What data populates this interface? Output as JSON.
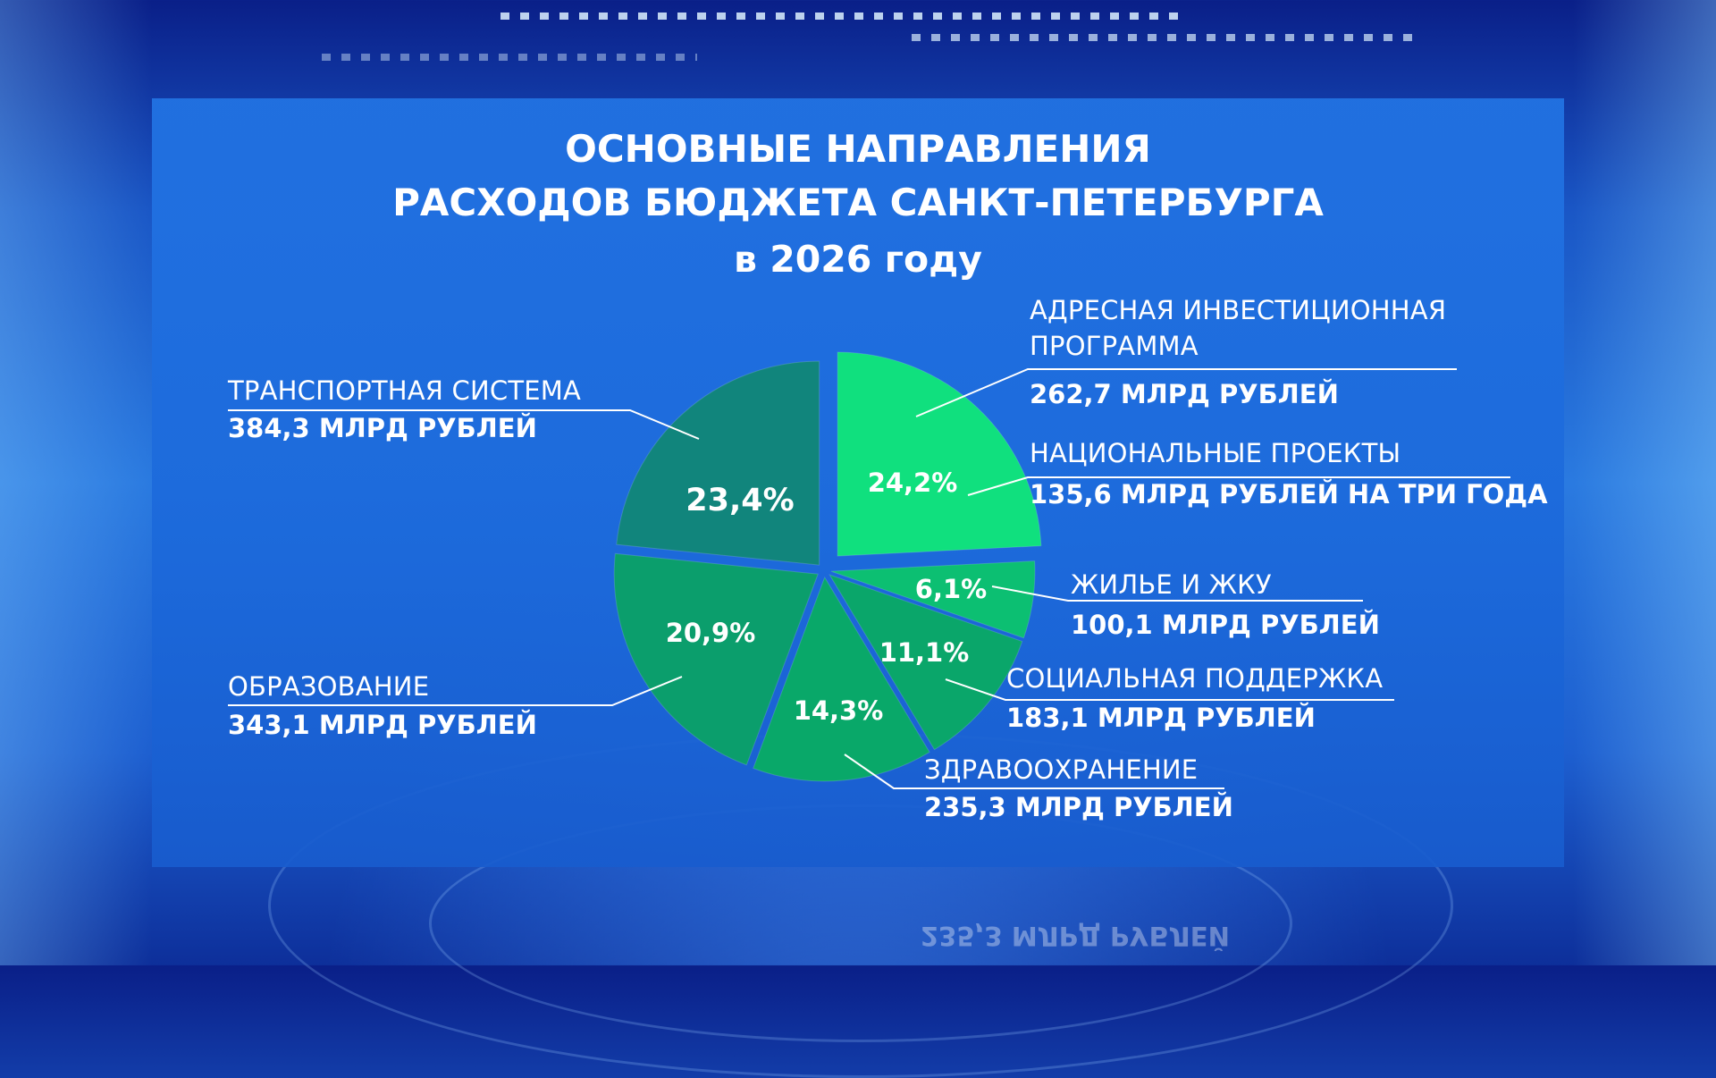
{
  "title": {
    "line1": "ОСНОВНЫЕ НАПРАВЛЕНИЯ",
    "line2": "РАСХОДОВ БЮДЖЕТА САНКТ-ПЕТЕРБУРГА",
    "line3": "в 2026 году"
  },
  "labels": {
    "investment_name_1": "АДРЕСНАЯ ИНВЕСТИЦИОННАЯ",
    "investment_name_2": "ПРОГРАММА",
    "investment_value": "262,7 МЛРД РУБЛЕЙ",
    "national_name": "НАЦИОНАЛЬНЫЕ ПРОЕКТЫ",
    "national_value": "135,6 МЛРД РУБЛЕЙ НА ТРИ ГОДА",
    "housing_name": "ЖИЛЬЕ И ЖКУ",
    "housing_value": "100,1 МЛРД РУБЛЕЙ",
    "social_name": "СОЦИАЛЬНАЯ ПОДДЕРЖКА",
    "social_value": "183,1 МЛРД РУБЛЕЙ",
    "health_name": "ЗДРАВООХРАНЕНИЕ",
    "health_value": "235,3 МЛРД РУБЛЕЙ",
    "education_name": "ОБРАЗОВАНИЕ",
    "education_value": "343,1 МЛРД РУБЛЕЙ",
    "transport_name": "ТРАНСПОРТНАЯ СИСТЕМА",
    "transport_value": "384,3 МЛРД РУБЛЕЙ"
  },
  "reflection_text": "235,3 МЛРД РУБЛЕЙ",
  "chart_data": {
    "type": "pie",
    "title": "ОСНОВНЫЕ НАПРАВЛЕНИЯ РАСХОДОВ БЮДЖЕТА САНКТ-ПЕТЕРБУРГА в 2026 году",
    "slices": [
      {
        "label": "АДРЕСНАЯ ИНВЕСТИЦИОННАЯ ПРОГРАММА",
        "value": 24.2,
        "display": "24,2%",
        "amount": "262,7 МЛРД РУБЛЕЙ",
        "color": "#10e07e",
        "exploded": true
      },
      {
        "label": "ЖИЛЬЕ И ЖКУ",
        "value": 6.1,
        "display": "6,1%",
        "amount": "100,1 МЛРД РУБЛЕЙ",
        "color": "#0cbf72"
      },
      {
        "label": "СОЦИАЛЬНАЯ ПОДДЕРЖКА",
        "value": 11.1,
        "display": "11,1%",
        "amount": "183,1 МЛРД РУБЛЕЙ",
        "color": "#0aa66a"
      },
      {
        "label": "ЗДРАВООХРАНЕНИЕ",
        "value": 14.3,
        "display": "14,3%",
        "amount": "235,3 МЛРД РУБЛЕЙ",
        "color": "#09a869"
      },
      {
        "label": "ОБРАЗОВАНИЕ",
        "value": 20.9,
        "display": "20,9%",
        "amount": "343,1 МЛРД РУБЛЕЙ",
        "color": "#0b9e6c"
      },
      {
        "label": "ТРАНСПОРТНАЯ СИСТЕМА",
        "value": 23.4,
        "display": "23,4%",
        "amount": "384,3 МЛРД РУБЛЕЙ",
        "color": "#11857c"
      }
    ],
    "start_angle_deg": 0,
    "direction": "clockwise"
  }
}
